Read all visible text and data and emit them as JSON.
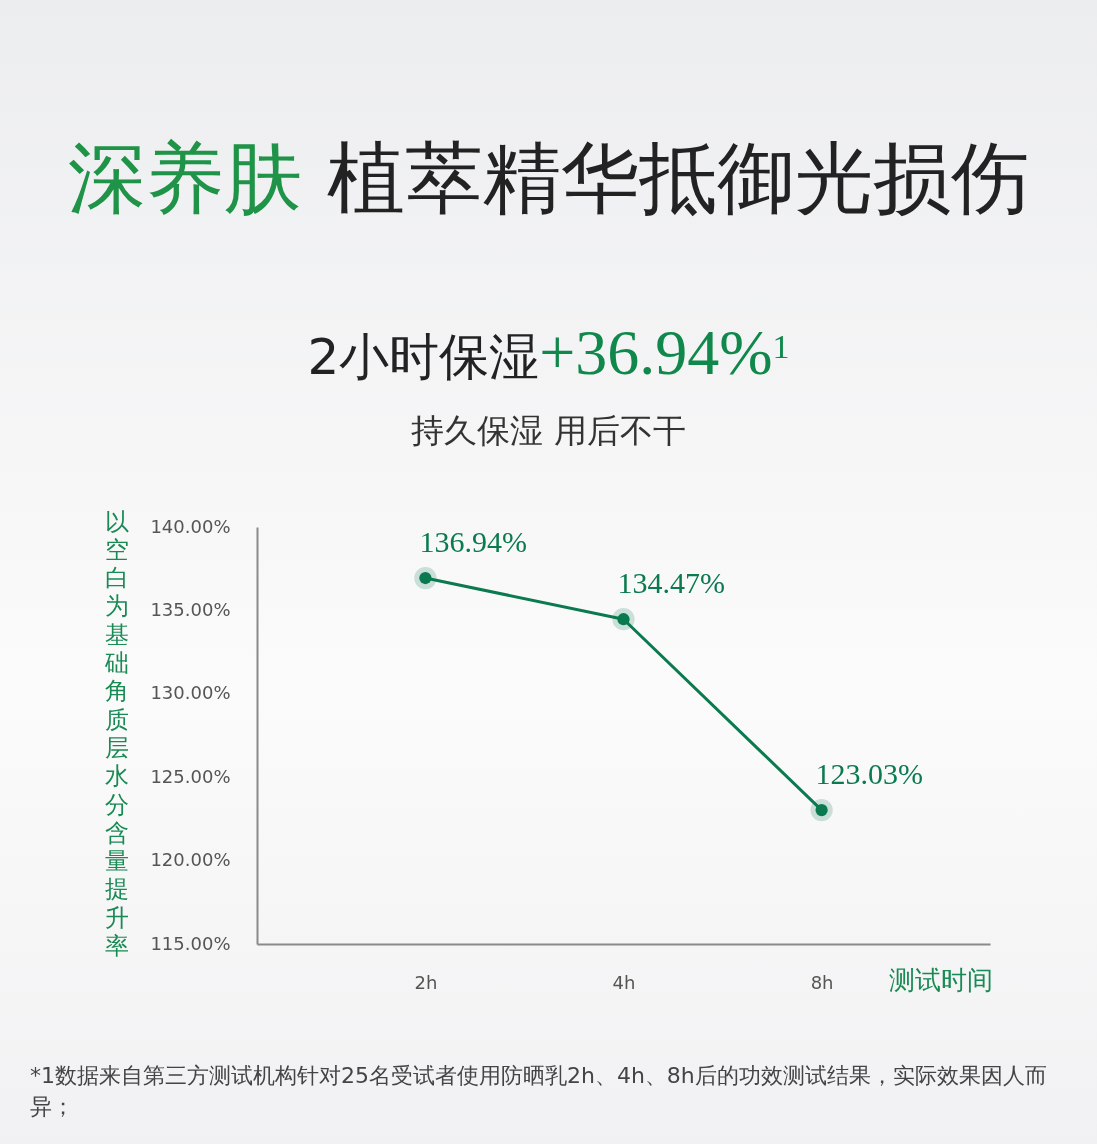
{
  "chart_data": {
    "type": "line",
    "title": "深养肤 植萃精华抵御光损伤",
    "subtitle": "2小时保湿+36.94%$^{1}$\n持久保湿 用后不干",
    "xlabel": "测试时间",
    "ylabel": "以空白为基础角质层水分含量提升率",
    "categories": [
      "2h",
      "4h",
      "8h"
    ],
    "series": [
      {
        "color": "#0b7a4f",
        "values": [
          136.94,
          134.47,
          123.03
        ],
        "value_labels": [
          "136.94%",
          "134.47%",
          "123.03%"
        ]
      }
    ],
    "ylim": [
      115,
      140
    ],
    "yticks": [
      {
        "value": 115,
        "label": "115.00%"
      },
      {
        "value": 120,
        "label": "120.00%"
      },
      {
        "value": 125,
        "label": "125.00%"
      },
      {
        "value": 130,
        "label": "130.00%"
      },
      {
        "value": 135,
        "label": "135.00%"
      },
      {
        "value": 140,
        "label": "140.00%"
      }
    ],
    "marker": "circle",
    "annotations": [
      "*1数据来自第三方测试机构针对25名受试者使用防晒乳2h、4h、8h后的功效测试结果，实际效果因人而异；"
    ]
  }
}
